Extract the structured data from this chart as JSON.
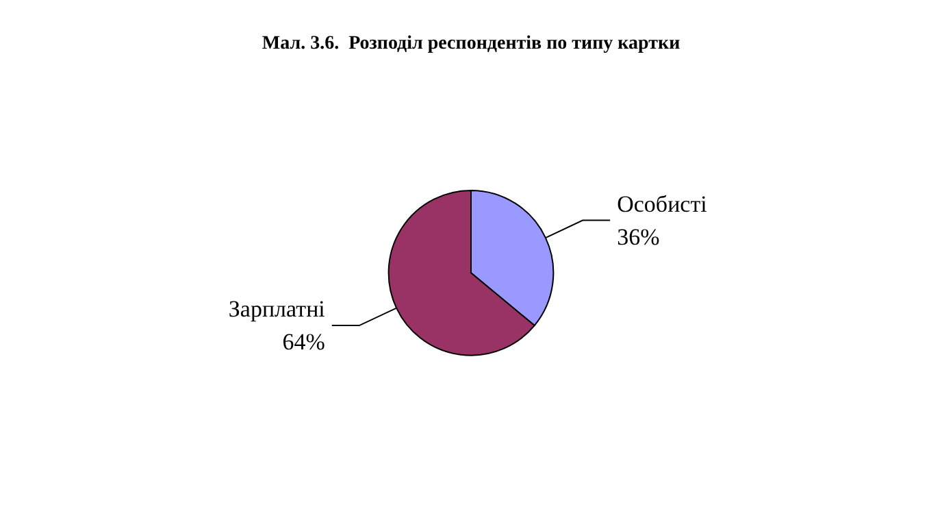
{
  "chart_data": {
    "type": "pie",
    "title": "Мал. 3.6.  Розподіл респондентів по типу картки",
    "categories": [
      "Особисті",
      "Зарплатні"
    ],
    "values": [
      36,
      64
    ],
    "colors": [
      "#9999ff",
      "#993366"
    ],
    "value_labels": [
      "36%",
      "64%"
    ],
    "legend": false
  }
}
